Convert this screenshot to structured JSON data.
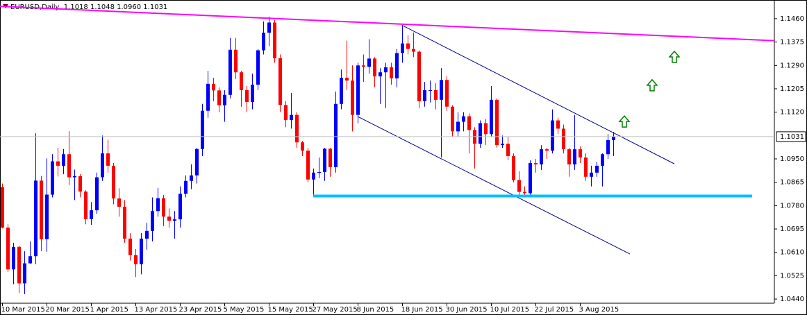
{
  "chart_data": {
    "type": "candlestick",
    "header": "EURUSD,Daily  1.1018 1.1048 1.0960 1.1031",
    "categories": [
      "10 Mar 2015",
      null,
      null,
      null,
      null,
      null,
      null,
      null,
      "20 Mar 2015",
      null,
      null,
      null,
      null,
      null,
      null,
      null,
      "1 Apr 2015",
      null,
      null,
      null,
      null,
      null,
      null,
      null,
      "13 Apr 2015",
      null,
      null,
      null,
      null,
      null,
      null,
      null,
      "23 Apr 2015",
      null,
      null,
      null,
      null,
      null,
      null,
      null,
      "5 May 2015",
      null,
      null,
      null,
      null,
      null,
      null,
      null,
      "15 May 2015",
      null,
      null,
      null,
      null,
      null,
      null,
      null,
      "27 May 2015",
      null,
      null,
      null,
      null,
      null,
      null,
      null,
      "8 Jun 2015",
      null,
      null,
      null,
      null,
      null,
      null,
      null,
      "18 Jun 2015",
      null,
      null,
      null,
      null,
      null,
      null,
      null,
      "30 Jun 2015",
      null,
      null,
      null,
      null,
      null,
      null,
      null,
      "10 Jul 2015",
      null,
      null,
      null,
      null,
      null,
      null,
      null,
      "22 Jul 2015",
      null,
      null,
      null,
      null,
      null,
      null,
      null,
      "3 Aug 2015",
      null,
      null,
      null,
      null,
      null,
      null
    ],
    "open": [
      1.0847,
      1.07,
      1.0548,
      1.063,
      1.0497,
      1.057,
      1.0596,
      1.0871,
      1.0658,
      1.082,
      1.0941,
      1.0925,
      1.0967,
      1.0883,
      1.0887,
      1.0831,
      1.0731,
      1.0763,
      1.0883,
      1.097,
      1.0925,
      1.0806,
      1.0776,
      1.066,
      1.06,
      1.0567,
      1.066,
      1.0688,
      1.076,
      1.0807,
      1.074,
      1.0725,
      1.073,
      1.0823,
      1.087,
      1.089,
      1.0986,
      1.1125,
      1.1223,
      1.1199,
      1.1145,
      1.1183,
      1.1347,
      1.1265,
      1.12,
      1.1157,
      1.122,
      1.1345,
      1.1409,
      1.1446,
      1.1316,
      1.1146,
      1.1091,
      1.111,
      1.101,
      1.098,
      1.0875,
      1.09,
      1.0902,
      1.0987,
      1.092,
      1.115,
      1.1245,
      1.1235,
      1.111,
      1.129,
      1.1285,
      1.1315,
      1.125,
      1.1265,
      1.1283,
      1.1243,
      1.1335,
      1.137,
      1.135,
      1.134,
      1.116,
      1.12,
      1.12,
      1.1165,
      1.1237,
      1.114,
      1.105,
      1.1085,
      1.1105,
      1.1055,
      1.1005,
      1.108,
      1.104,
      1.1165,
      1.1,
      1.1005,
      1.096,
      1.0873,
      1.083,
      1.0825,
      1.0935,
      1.093,
      1.0985,
      1.098,
      1.109,
      1.106,
      1.0985,
      1.093,
      1.0985,
      1.0955,
      1.0885,
      1.09,
      1.0925,
      1.0967,
      1.1018
    ],
    "high": [
      1.086,
      1.0712,
      1.0645,
      1.0634,
      1.0614,
      1.065,
      1.1043,
      1.0888,
      1.0952,
      1.0967,
      1.099,
      1.0986,
      1.1051,
      1.0911,
      1.0895,
      1.0836,
      1.0793,
      1.09,
      1.1035,
      1.102,
      1.0935,
      1.0843,
      1.08,
      1.068,
      1.0622,
      1.068,
      1.0718,
      1.081,
      1.0845,
      1.0819,
      1.077,
      1.076,
      1.085,
      1.089,
      1.093,
      1.099,
      1.115,
      1.127,
      1.1245,
      1.121,
      1.12,
      1.139,
      1.139,
      1.127,
      1.1215,
      1.126,
      1.135,
      1.145,
      1.1467,
      1.1455,
      1.133,
      1.116,
      1.119,
      1.112,
      1.1015,
      1.099,
      1.0915,
      1.0955,
      1.099,
      1.099,
      1.1195,
      1.1275,
      1.138,
      1.129,
      1.13,
      1.133,
      1.1385,
      1.132,
      1.128,
      1.13,
      1.13,
      1.135,
      1.1436,
      1.14,
      1.141,
      1.1345,
      1.123,
      1.1235,
      1.1225,
      1.128,
      1.125,
      1.1145,
      1.112,
      1.112,
      1.1115,
      1.1065,
      1.109,
      1.1095,
      1.1215,
      1.117,
      1.1035,
      1.103,
      1.097,
      1.0905,
      1.085,
      1.0945,
      1.095,
      1.1,
      1.099,
      1.113,
      1.11,
      1.1075,
      1.099,
      1.111,
      1.0995,
      1.097,
      1.0925,
      1.094,
      1.097,
      1.104,
      1.1048
    ],
    "low": [
      1.0697,
      1.0538,
      1.0494,
      1.0462,
      1.0458,
      1.0568,
      1.0567,
      1.0614,
      1.0612,
      1.081,
      1.0886,
      1.0894,
      1.0855,
      1.08,
      1.081,
      1.0712,
      1.071,
      1.075,
      1.087,
      1.09,
      1.0785,
      1.074,
      1.0645,
      1.058,
      1.052,
      1.053,
      1.062,
      1.065,
      1.074,
      1.0705,
      1.07,
      1.066,
      1.07,
      1.081,
      1.084,
      1.086,
      1.096,
      1.11,
      1.116,
      1.112,
      1.1085,
      1.117,
      1.124,
      1.114,
      1.112,
      1.113,
      1.12,
      1.133,
      1.136,
      1.13,
      1.112,
      1.1065,
      1.106,
      1.099,
      1.096,
      1.0865,
      1.082,
      1.088,
      1.087,
      1.0885,
      1.09,
      1.113,
      1.12,
      1.105,
      1.108,
      1.123,
      1.126,
      1.121,
      1.115,
      1.1135,
      1.122,
      1.121,
      1.13,
      1.133,
      1.132,
      1.1135,
      1.114,
      1.1155,
      1.113,
      1.0955,
      1.1125,
      1.103,
      1.103,
      1.105,
      1.097,
      1.0915,
      1.099,
      1.1,
      1.103,
      1.099,
      1.099,
      1.0945,
      1.0865,
      1.082,
      1.081,
      1.081,
      1.09,
      1.091,
      1.095,
      1.097,
      1.104,
      1.097,
      1.0885,
      1.091,
      1.0935,
      1.087,
      1.085,
      1.0885,
      1.085,
      1.095,
      1.096
    ],
    "close": [
      1.07,
      1.0548,
      1.063,
      1.0497,
      1.057,
      1.0596,
      1.0871,
      1.0658,
      1.082,
      1.0941,
      1.0925,
      1.0967,
      1.0883,
      1.0887,
      1.0831,
      1.0731,
      1.0763,
      1.0883,
      1.097,
      1.0925,
      1.0806,
      1.0776,
      1.066,
      1.06,
      1.0567,
      1.066,
      1.0688,
      1.076,
      1.0807,
      1.074,
      1.0725,
      1.073,
      1.0823,
      1.087,
      1.089,
      1.0986,
      1.1125,
      1.1223,
      1.1199,
      1.1145,
      1.1183,
      1.1347,
      1.1265,
      1.12,
      1.1157,
      1.122,
      1.1345,
      1.1409,
      1.1446,
      1.1316,
      1.1146,
      1.1091,
      1.111,
      1.101,
      1.098,
      1.0875,
      1.09,
      1.0902,
      1.0987,
      1.092,
      1.115,
      1.1245,
      1.1235,
      1.111,
      1.129,
      1.1285,
      1.1315,
      1.125,
      1.1265,
      1.1283,
      1.1243,
      1.1335,
      1.137,
      1.135,
      1.134,
      1.116,
      1.12,
      1.12,
      1.1165,
      1.1237,
      1.114,
      1.105,
      1.1085,
      1.1105,
      1.1055,
      1.1005,
      1.108,
      1.104,
      1.1165,
      1.1,
      1.1005,
      1.096,
      1.0873,
      1.083,
      1.0825,
      1.0935,
      1.093,
      1.0985,
      1.098,
      1.109,
      1.106,
      1.0985,
      1.093,
      1.0985,
      1.0955,
      1.0885,
      1.09,
      1.0925,
      1.0967,
      1.1018,
      1.1031
    ],
    "up_color": "#0000ff",
    "down_color": "#ff0000",
    "xlim": [
      -0.375,
      139
    ],
    "ylim": [
      1.0425,
      1.1528
    ],
    "yticks": [
      {
        "value": 1.146,
        "label": "1.1460"
      },
      1.1375,
      {
        "value": 1.129,
        "label": "1.1290"
      },
      1.1205,
      {
        "value": 1.112,
        "label": "1.1120"
      },
      {
        "value": 1.095,
        "label": "1.0950"
      },
      1.0865,
      {
        "value": 1.078,
        "label": "1.0780"
      },
      1.0695,
      {
        "value": 1.061,
        "label": "1.0610"
      },
      1.0525,
      {
        "value": 1.044,
        "label": "1.0440"
      }
    ],
    "last_price": 1.1031,
    "trendlines": [
      {
        "color": "#ff00ff",
        "x": [
          -0.375,
          139
        ],
        "y": [
          1.1505,
          1.138
        ]
      },
      {
        "color": "#00008b",
        "x": [
          72,
          121
        ],
        "y": [
          1.1436,
          1.0932
        ]
      },
      {
        "color": "#00008b",
        "x": [
          64,
          113
        ],
        "y": [
          1.1104,
          1.0604
        ]
      },
      {
        "color": "#00bfff",
        "x": [
          56,
          135
        ],
        "y": [
          1.0815,
          1.0815
        ]
      }
    ],
    "arrows": {
      "color": "#008000",
      "x": [
        112,
        117,
        121
      ],
      "y": [
        1.1086,
        1.1218,
        1.1321
      ]
    }
  }
}
